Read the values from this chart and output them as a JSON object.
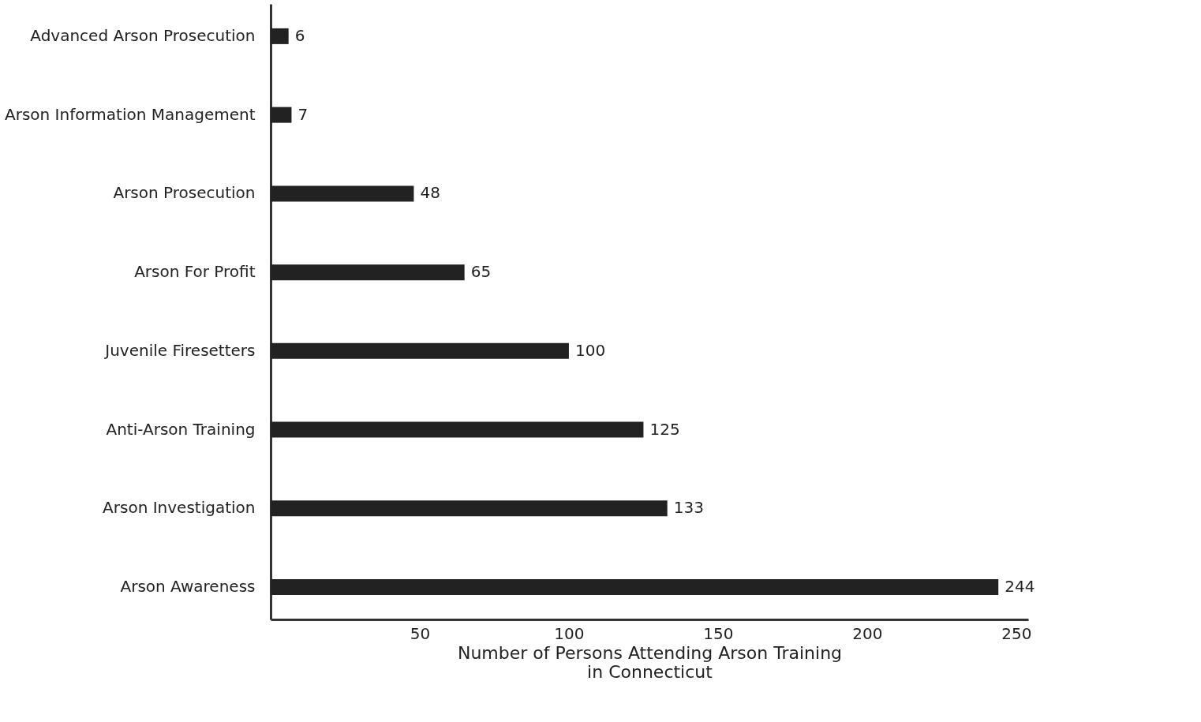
{
  "chart_data": {
    "type": "bar",
    "orientation": "horizontal",
    "categories": [
      "Advanced Arson Prosecution",
      "Arson Information Management",
      "Arson Prosecution",
      "Arson For Profit",
      "Juvenile Firesetters",
      "Anti-Arson Training",
      "Arson Investigation",
      "Arson Awareness"
    ],
    "values": [
      6,
      7,
      48,
      65,
      100,
      125,
      133,
      244
    ],
    "color": "#222222",
    "xlabel": "Number of Persons Attending Arson Training\nin Connecticut",
    "xlim": [
      0,
      254
    ],
    "xticks": [
      50,
      100,
      150,
      200,
      250
    ],
    "data_labels": true,
    "grid": false
  }
}
